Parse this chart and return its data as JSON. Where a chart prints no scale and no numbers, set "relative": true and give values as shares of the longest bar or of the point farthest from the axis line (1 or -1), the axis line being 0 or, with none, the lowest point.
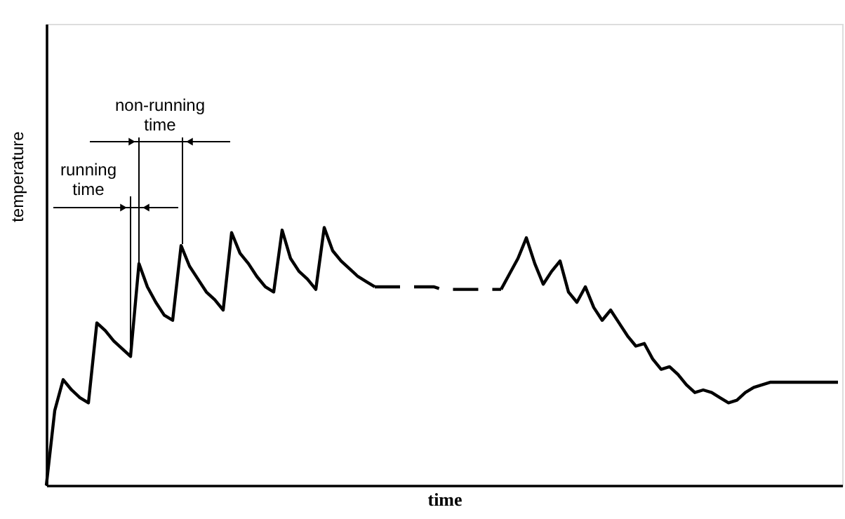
{
  "chart_data": {
    "type": "line",
    "xlabel": "time",
    "ylabel": "temperature",
    "relative": true,
    "tick_labels": false,
    "marker": "none",
    "annotations": [
      "running time",
      "non-running time"
    ],
    "categories": [
      null,
      null,
      null,
      null,
      null,
      null,
      null,
      null,
      null,
      null,
      null,
      null,
      null,
      null,
      null,
      null,
      null,
      null,
      null,
      null,
      null,
      null,
      null,
      null,
      null,
      null,
      null,
      null,
      null,
      null,
      null,
      null,
      null,
      null,
      null,
      null,
      null,
      null,
      null,
      null,
      null,
      null,
      null,
      null,
      null,
      null,
      null,
      null,
      null,
      null,
      null,
      null,
      null,
      null,
      null,
      null,
      null,
      null,
      null,
      null,
      null,
      null,
      null,
      null,
      null,
      null,
      null,
      null,
      null,
      null,
      null,
      null,
      null,
      null,
      null,
      null,
      null,
      null,
      null,
      null,
      null,
      null,
      null,
      null,
      null,
      null,
      null,
      null,
      null,
      null,
      null,
      null,
      null,
      null,
      null
    ],
    "series": [
      {
        "color": "#000000",
        "line_style": "solid",
        "values": [
          0,
          0.29,
          0.41,
          0.37,
          0.34,
          0.32,
          0.63,
          0.6,
          0.56,
          0.53,
          0.5,
          0.86,
          0.77,
          0.71,
          0.66,
          0.64,
          0.93,
          0.85,
          0.8,
          0.75,
          0.72,
          0.68,
          0.98,
          0.9,
          0.86,
          0.81,
          0.77,
          0.75,
          0.99,
          0.88,
          0.83,
          0.8,
          0.76,
          1,
          0.91,
          0.87,
          0.84,
          0.81,
          0.79,
          0.77,
          null,
          null,
          null,
          null,
          null,
          null,
          null,
          null,
          null,
          null,
          null,
          null,
          null,
          null,
          null,
          null,
          null,
          null,
          null,
          null,
          null,
          null,
          null,
          null,
          null,
          null,
          null,
          null,
          null,
          null,
          null,
          null,
          null,
          null,
          null,
          null,
          null,
          null,
          null,
          null,
          null,
          null,
          null,
          null,
          null,
          null,
          null,
          null,
          null,
          null,
          null,
          null,
          null,
          null,
          null
        ]
      },
      {
        "color": "#000000",
        "line_style": "dashed",
        "values": [
          null,
          null,
          null,
          null,
          null,
          null,
          null,
          null,
          null,
          null,
          null,
          null,
          null,
          null,
          null,
          null,
          null,
          null,
          null,
          null,
          null,
          null,
          null,
          null,
          null,
          null,
          null,
          null,
          null,
          null,
          null,
          null,
          null,
          null,
          null,
          null,
          null,
          null,
          null,
          0.77,
          0.77,
          0.77,
          0.77,
          0.77,
          0.77,
          0.77,
          0.77,
          0.76,
          0.76,
          0.76,
          0.76,
          0.76,
          0.76,
          0.76,
          0.76,
          null,
          null,
          null,
          null,
          null,
          null,
          null,
          null,
          null,
          null,
          null,
          null,
          null,
          null,
          null,
          null,
          null,
          null,
          null,
          null,
          null,
          null,
          null,
          null,
          null,
          null,
          null,
          null,
          null,
          null,
          null,
          null,
          null,
          null,
          null,
          null,
          null,
          null,
          null,
          null
        ]
      },
      {
        "color": "#000000",
        "line_style": "solid",
        "values": [
          null,
          null,
          null,
          null,
          null,
          null,
          null,
          null,
          null,
          null,
          null,
          null,
          null,
          null,
          null,
          null,
          null,
          null,
          null,
          null,
          null,
          null,
          null,
          null,
          null,
          null,
          null,
          null,
          null,
          null,
          null,
          null,
          null,
          null,
          null,
          null,
          null,
          null,
          null,
          null,
          null,
          null,
          null,
          null,
          null,
          null,
          null,
          null,
          null,
          null,
          null,
          null,
          null,
          null,
          0.76,
          0.82,
          0.88,
          0.96,
          0.86,
          0.78,
          0.83,
          0.87,
          0.75,
          0.71,
          0.77,
          0.69,
          0.64,
          0.68,
          0.63,
          0.58,
          0.54,
          0.55,
          0.49,
          0.45,
          0.46,
          0.43,
          0.39,
          0.36,
          0.37,
          0.36,
          0.34,
          0.32,
          0.33,
          0.36,
          0.38,
          0.39,
          0.4,
          0.4,
          0.4,
          0.4,
          0.4,
          0.4,
          0.4,
          0.4,
          0.4
        ]
      }
    ]
  }
}
